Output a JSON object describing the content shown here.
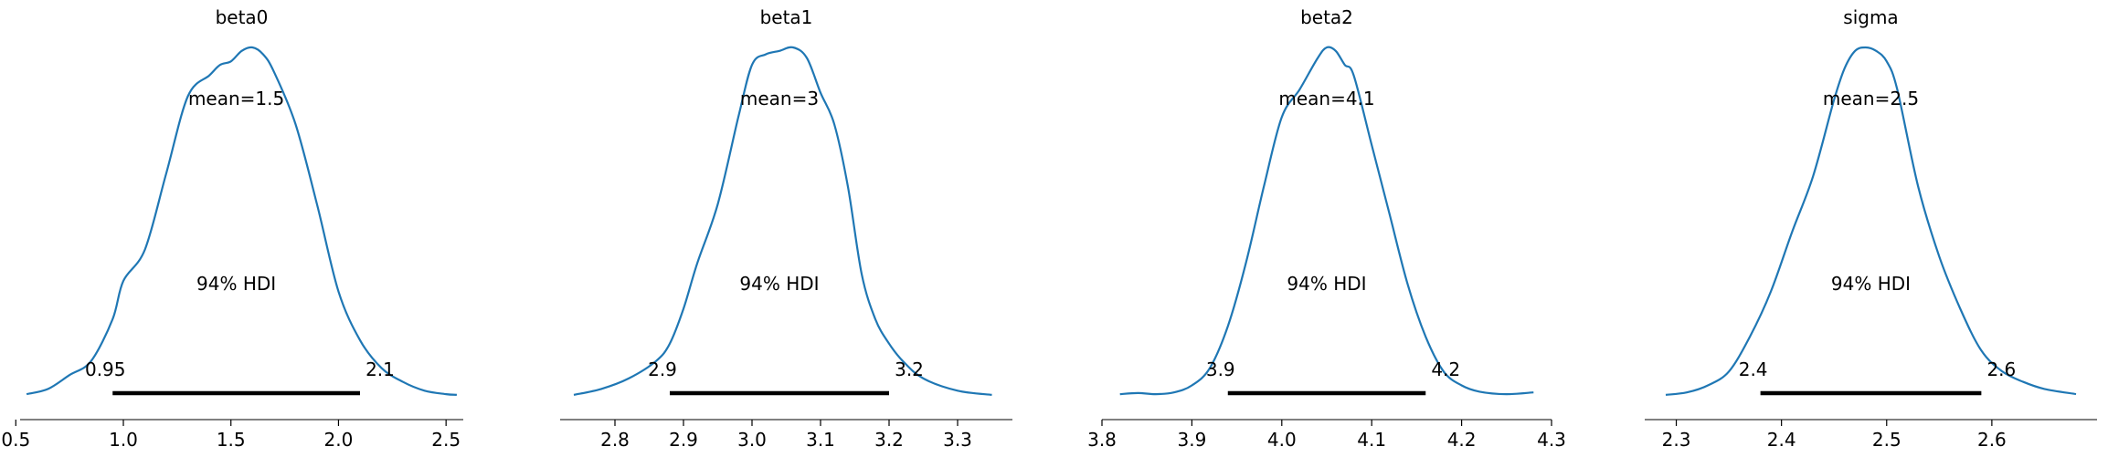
{
  "colors": {
    "density": "#1f77b4",
    "hdi_bar": "#000000",
    "axis": "#000000"
  },
  "chart_data": [
    {
      "type": "line",
      "title": "beta0",
      "xlim": [
        0.52,
        2.58
      ],
      "xticks": [
        0.5,
        1.0,
        1.5,
        2.0,
        2.5
      ],
      "xtick_labels": [
        "0.5",
        "1.0",
        "1.5",
        "2.0",
        "2.5"
      ],
      "mean_label": "mean=1.5",
      "hdi_label": "94% HDI",
      "hdi": [
        0.95,
        2.1
      ],
      "hdi_low_label": "0.95",
      "hdi_high_label": "2.1",
      "density": {
        "x": [
          0.55,
          0.65,
          0.75,
          0.85,
          0.95,
          1.0,
          1.1,
          1.2,
          1.3,
          1.4,
          1.45,
          1.5,
          1.55,
          1.6,
          1.65,
          1.7,
          1.8,
          1.9,
          2.0,
          2.1,
          2.2,
          2.3,
          2.4,
          2.5,
          2.55
        ],
        "y": [
          0.005,
          0.02,
          0.06,
          0.1,
          0.22,
          0.33,
          0.42,
          0.64,
          0.86,
          0.92,
          0.95,
          0.96,
          0.99,
          1.0,
          0.98,
          0.93,
          0.78,
          0.55,
          0.3,
          0.16,
          0.08,
          0.04,
          0.015,
          0.005,
          0.003
        ]
      }
    },
    {
      "type": "line",
      "title": "beta1",
      "xlim": [
        2.72,
        3.38
      ],
      "xticks": [
        2.8,
        2.9,
        3.0,
        3.1,
        3.2,
        3.3
      ],
      "xtick_labels": [
        "2.8",
        "2.9",
        "3.0",
        "3.1",
        "3.2",
        "3.3"
      ],
      "mean_label": "mean=3",
      "hdi_label": "94% HDI",
      "hdi": [
        2.88,
        3.2
      ],
      "hdi_low_label": "2.9",
      "hdi_high_label": "3.2",
      "density": {
        "x": [
          2.74,
          2.78,
          2.82,
          2.86,
          2.88,
          2.9,
          2.92,
          2.95,
          2.98,
          3.0,
          3.02,
          3.04,
          3.06,
          3.08,
          3.1,
          3.12,
          3.14,
          3.16,
          3.18,
          3.2,
          3.22,
          3.25,
          3.3,
          3.35
        ],
        "y": [
          0.003,
          0.02,
          0.05,
          0.1,
          0.15,
          0.25,
          0.38,
          0.55,
          0.8,
          0.95,
          0.98,
          0.99,
          1.0,
          0.97,
          0.87,
          0.78,
          0.6,
          0.35,
          0.22,
          0.15,
          0.1,
          0.05,
          0.015,
          0.003
        ]
      }
    },
    {
      "type": "line",
      "title": "beta2",
      "xlim": [
        3.8,
        4.3
      ],
      "xticks": [
        3.8,
        3.9,
        4.0,
        4.1,
        4.2,
        4.3
      ],
      "xtick_labels": [
        "3.8",
        "3.9",
        "4.0",
        "4.1",
        "4.2",
        "4.3"
      ],
      "mean_label": "mean=4.1",
      "hdi_label": "94% HDI",
      "hdi": [
        3.94,
        4.16
      ],
      "hdi_low_label": "3.9",
      "hdi_high_label": "4.2",
      "density": {
        "x": [
          3.82,
          3.84,
          3.86,
          3.88,
          3.9,
          3.92,
          3.94,
          3.96,
          3.98,
          4.0,
          4.02,
          4.04,
          4.05,
          4.06,
          4.07,
          4.08,
          4.1,
          4.12,
          4.14,
          4.16,
          4.18,
          4.2,
          4.22,
          4.25,
          4.28
        ],
        "y": [
          0.005,
          0.008,
          0.005,
          0.01,
          0.03,
          0.08,
          0.2,
          0.38,
          0.6,
          0.8,
          0.88,
          0.97,
          1.0,
          0.99,
          0.95,
          0.92,
          0.72,
          0.52,
          0.32,
          0.17,
          0.07,
          0.03,
          0.012,
          0.005,
          0.01
        ]
      }
    },
    {
      "type": "line",
      "title": "sigma",
      "xlim": [
        2.27,
        2.7
      ],
      "xticks": [
        2.3,
        2.4,
        2.5,
        2.6
      ],
      "xtick_labels": [
        "2.3",
        "2.4",
        "2.5",
        "2.6"
      ],
      "mean_label": "mean=2.5",
      "hdi_label": "94% HDI",
      "hdi": [
        2.38,
        2.59
      ],
      "hdi_low_label": "2.4",
      "hdi_high_label": "2.6",
      "density": {
        "x": [
          2.29,
          2.31,
          2.33,
          2.35,
          2.37,
          2.39,
          2.41,
          2.43,
          2.45,
          2.46,
          2.47,
          2.48,
          2.49,
          2.5,
          2.51,
          2.53,
          2.55,
          2.57,
          2.59,
          2.61,
          2.63,
          2.65,
          2.68
        ],
        "y": [
          0.003,
          0.01,
          0.03,
          0.07,
          0.17,
          0.3,
          0.47,
          0.63,
          0.85,
          0.94,
          0.99,
          1.0,
          0.99,
          0.96,
          0.88,
          0.6,
          0.4,
          0.25,
          0.13,
          0.07,
          0.04,
          0.02,
          0.005
        ]
      }
    }
  ]
}
